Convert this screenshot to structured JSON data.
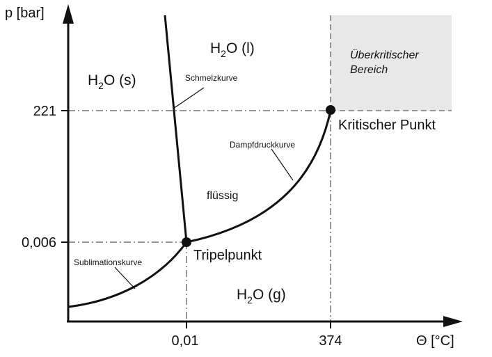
{
  "axes": {
    "y_label": "p [bar]",
    "x_label": "Θ [°C]",
    "y_ticks": [
      "221",
      "0,006"
    ],
    "x_ticks": [
      "0,01",
      "374"
    ]
  },
  "regions": {
    "solid": {
      "base": "H",
      "sub": "2",
      "rest": "O (s)"
    },
    "liquid": {
      "base": "H",
      "sub": "2",
      "rest": "O (l)"
    },
    "gas": {
      "base": "H",
      "sub": "2",
      "rest": "O (g)"
    },
    "liquid_inner": "flüssig",
    "supercritical_line1": "Überkritischer",
    "supercritical_line2": "Bereich"
  },
  "curves": {
    "melting": "Schmelzkurve",
    "vapor_pressure": "Dampfdruckkurve",
    "sublimation": "Sublimationskurve"
  },
  "points": {
    "triple": "Tripelpunkt",
    "critical": "Kritischer Punkt"
  },
  "colors": {
    "line": "#111111",
    "dashed": "#555555",
    "supercritical_fill": "#e8e8e8"
  }
}
